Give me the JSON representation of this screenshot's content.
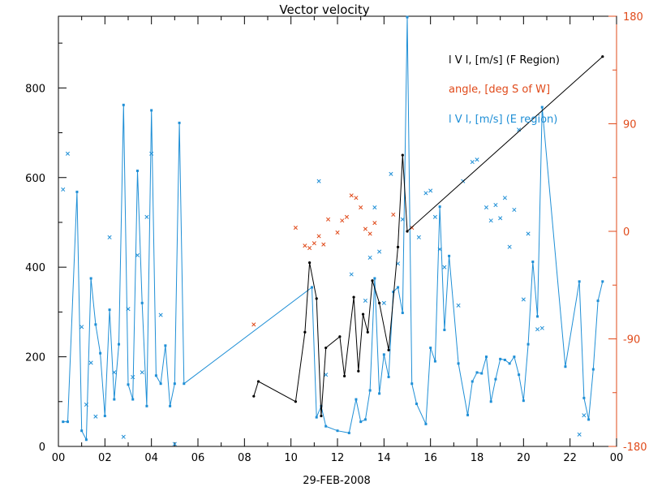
{
  "chart_data": {
    "type": "line",
    "title": "Vector velocity",
    "xlabel": "29-FEB-2008",
    "xlim": [
      0,
      24
    ],
    "x_ticks": [
      "00",
      "02",
      "04",
      "06",
      "08",
      "10",
      "12",
      "14",
      "16",
      "18",
      "20",
      "22",
      "00"
    ],
    "ylim_left": [
      0,
      960
    ],
    "y_ticks_left": [
      "0",
      "200",
      "400",
      "600",
      "800"
    ],
    "ylim_right": [
      -180,
      180
    ],
    "y_ticks_right": [
      "-180",
      "-90",
      "0",
      "90",
      "180"
    ],
    "colors": {
      "f_region": "#000000",
      "angle": "#e04a1a",
      "e_region": "#1f8fd6"
    },
    "legend": [
      {
        "text": "l V l, [m/s] (F Region)",
        "color": "#000000"
      },
      {
        "text": "angle, [deg S of W]",
        "color": "#e04a1a"
      },
      {
        "text": "l V l, [m/s] (E region)",
        "color": "#1f8fd6"
      }
    ],
    "series_f_region": [
      [
        8.4,
        112
      ],
      [
        8.6,
        145
      ],
      [
        10.2,
        100
      ],
      [
        10.6,
        255
      ],
      [
        10.8,
        410
      ],
      [
        11.1,
        330
      ],
      [
        11.3,
        68
      ],
      [
        11.5,
        220
      ],
      [
        12.1,
        245
      ],
      [
        12.3,
        157
      ],
      [
        12.7,
        333
      ],
      [
        12.9,
        168
      ],
      [
        13.1,
        295
      ],
      [
        13.3,
        255
      ],
      [
        13.5,
        370
      ],
      [
        13.8,
        320
      ],
      [
        14.2,
        215
      ],
      [
        14.6,
        445
      ],
      [
        14.8,
        650
      ],
      [
        15.0,
        480
      ],
      [
        23.4,
        870
      ]
    ],
    "series_e_region": [
      [
        0.2,
        55
      ],
      [
        0.4,
        55
      ],
      [
        0.8,
        568
      ],
      [
        1.0,
        35
      ],
      [
        1.2,
        15
      ],
      [
        1.4,
        375
      ],
      [
        1.6,
        272
      ],
      [
        1.8,
        208
      ],
      [
        2.0,
        68
      ],
      [
        2.2,
        305
      ],
      [
        2.4,
        105
      ],
      [
        2.6,
        228
      ],
      [
        2.8,
        762
      ],
      [
        3.0,
        138
      ],
      [
        3.2,
        105
      ],
      [
        3.4,
        615
      ],
      [
        3.6,
        320
      ],
      [
        3.8,
        90
      ],
      [
        4.0,
        750
      ],
      [
        4.2,
        158
      ],
      [
        4.4,
        140
      ],
      [
        4.6,
        225
      ],
      [
        4.8,
        90
      ],
      [
        5.0,
        140
      ],
      [
        5.2,
        722
      ],
      [
        5.4,
        140
      ],
      [
        10.9,
        355
      ],
      [
        11.1,
        65
      ],
      [
        11.3,
        90
      ],
      [
        11.5,
        45
      ],
      [
        12.0,
        35
      ],
      [
        12.5,
        30
      ],
      [
        12.8,
        105
      ],
      [
        13.0,
        55
      ],
      [
        13.2,
        60
      ],
      [
        13.4,
        125
      ],
      [
        13.6,
        375
      ],
      [
        13.8,
        118
      ],
      [
        14.0,
        205
      ],
      [
        14.2,
        155
      ],
      [
        14.4,
        345
      ],
      [
        14.6,
        355
      ],
      [
        14.8,
        298
      ],
      [
        15.0,
        958
      ],
      [
        15.2,
        140
      ],
      [
        15.4,
        95
      ],
      [
        15.8,
        50
      ],
      [
        16.0,
        220
      ],
      [
        16.2,
        190
      ],
      [
        16.4,
        535
      ],
      [
        16.6,
        260
      ],
      [
        16.8,
        425
      ],
      [
        17.2,
        185
      ],
      [
        17.6,
        70
      ],
      [
        17.8,
        145
      ],
      [
        18.0,
        165
      ],
      [
        18.2,
        163
      ],
      [
        18.4,
        200
      ],
      [
        18.6,
        100
      ],
      [
        18.8,
        150
      ],
      [
        19.0,
        195
      ],
      [
        19.2,
        193
      ],
      [
        19.4,
        185
      ],
      [
        19.6,
        200
      ],
      [
        19.8,
        160
      ],
      [
        20.0,
        102
      ],
      [
        20.2,
        228
      ],
      [
        20.4,
        412
      ],
      [
        20.6,
        290
      ],
      [
        20.8,
        757
      ],
      [
        21.8,
        178
      ],
      [
        22.4,
        368
      ],
      [
        22.6,
        108
      ],
      [
        22.8,
        60
      ],
      [
        23.0,
        172
      ],
      [
        23.2,
        325
      ],
      [
        23.4,
        368
      ]
    ],
    "scatter_angle": [
      [
        8.4,
        -78
      ],
      [
        10.2,
        3
      ],
      [
        10.6,
        -12
      ],
      [
        10.8,
        -14
      ],
      [
        11.0,
        -10
      ],
      [
        11.2,
        -4
      ],
      [
        11.4,
        -11
      ],
      [
        11.6,
        10
      ],
      [
        12.0,
        -1
      ],
      [
        12.2,
        9
      ],
      [
        12.4,
        12
      ],
      [
        12.6,
        30
      ],
      [
        12.8,
        28
      ],
      [
        13.0,
        20
      ],
      [
        13.2,
        2
      ],
      [
        13.4,
        -2
      ],
      [
        13.6,
        7
      ],
      [
        14.4,
        14
      ],
      [
        15.2,
        3
      ]
    ],
    "scatter_e_angle": [
      [
        0.2,
        35
      ],
      [
        0.4,
        65
      ],
      [
        1.0,
        -80
      ],
      [
        1.2,
        -145
      ],
      [
        1.4,
        -110
      ],
      [
        1.6,
        -155
      ],
      [
        2.2,
        -5
      ],
      [
        2.4,
        -118
      ],
      [
        2.8,
        -172
      ],
      [
        3.0,
        -65
      ],
      [
        3.2,
        -122
      ],
      [
        3.4,
        -20
      ],
      [
        3.6,
        -118
      ],
      [
        3.8,
        12
      ],
      [
        4.0,
        65
      ],
      [
        4.4,
        -70
      ],
      [
        5.0,
        -178
      ],
      [
        11.2,
        42
      ],
      [
        11.5,
        -120
      ],
      [
        12.6,
        -36
      ],
      [
        13.2,
        -58
      ],
      [
        13.4,
        -22
      ],
      [
        13.6,
        20
      ],
      [
        13.8,
        -17
      ],
      [
        14.0,
        -60
      ],
      [
        14.3,
        48
      ],
      [
        14.6,
        -27
      ],
      [
        14.8,
        10
      ],
      [
        15.5,
        -5
      ],
      [
        15.8,
        32
      ],
      [
        16.0,
        34
      ],
      [
        16.2,
        12
      ],
      [
        16.4,
        -15
      ],
      [
        16.6,
        -30
      ],
      [
        17.2,
        -62
      ],
      [
        17.4,
        42
      ],
      [
        17.8,
        58
      ],
      [
        18.0,
        60
      ],
      [
        18.4,
        20
      ],
      [
        18.6,
        9
      ],
      [
        18.8,
        22
      ],
      [
        19.0,
        11
      ],
      [
        19.2,
        28
      ],
      [
        19.4,
        -13
      ],
      [
        19.6,
        18
      ],
      [
        19.8,
        85
      ],
      [
        20.0,
        -57
      ],
      [
        20.2,
        -2
      ],
      [
        20.6,
        -82
      ],
      [
        20.8,
        -81
      ],
      [
        22.4,
        -170
      ],
      [
        22.6,
        -154
      ]
    ]
  }
}
